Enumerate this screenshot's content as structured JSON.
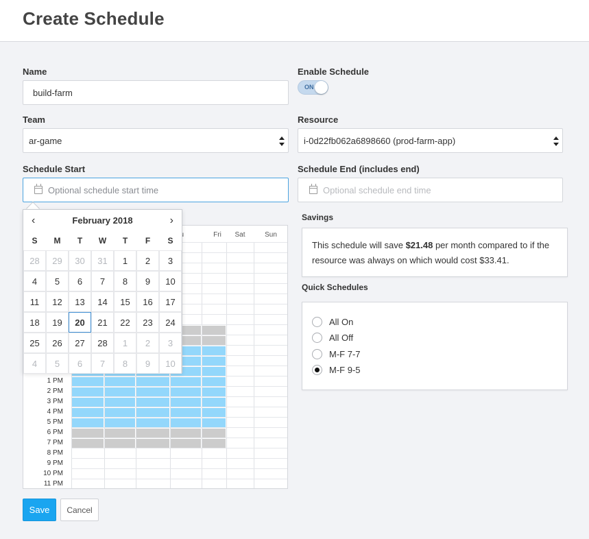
{
  "header": {
    "title": "Create Schedule"
  },
  "form": {
    "name_label": "Name",
    "name_value": "build-farm",
    "enable_label": "Enable Schedule",
    "toggle_text": "ON",
    "team_label": "Team",
    "team_value": "ar-game",
    "resource_label": "Resource",
    "resource_value": "i-0d22fb062a6898660 (prod-farm-app)",
    "start_label": "Schedule Start",
    "start_placeholder": "Optional schedule start time",
    "end_label": "Schedule End (includes end)",
    "end_placeholder": "Optional schedule end time"
  },
  "datepicker": {
    "month_title": "February 2018",
    "prev_glyph": "‹",
    "next_glyph": "›",
    "weekdays": [
      "S",
      "M",
      "T",
      "W",
      "T",
      "F",
      "S"
    ],
    "weeks": [
      [
        "28",
        "29",
        "30",
        "31",
        "1",
        "2",
        "3"
      ],
      [
        "4",
        "5",
        "6",
        "7",
        "8",
        "9",
        "10"
      ],
      [
        "11",
        "12",
        "13",
        "14",
        "15",
        "16",
        "17"
      ],
      [
        "18",
        "19",
        "20",
        "21",
        "22",
        "23",
        "24"
      ],
      [
        "25",
        "26",
        "27",
        "28",
        "1",
        "2",
        "3"
      ],
      [
        "4",
        "5",
        "6",
        "7",
        "8",
        "9",
        "10"
      ]
    ],
    "today": "20"
  },
  "schedule_grid": {
    "visible_day_headers": {
      "thu": "hu",
      "fri": "Fri",
      "sat": "Sat",
      "sun": "Sun"
    },
    "hour_labels": [
      "1 PM",
      "2 PM",
      "3 PM",
      "4 PM",
      "5 PM",
      "6 PM",
      "7 PM",
      "8 PM",
      "9 PM",
      "10 PM",
      "11 PM"
    ]
  },
  "savings": {
    "label": "Savings",
    "text_before": "This schedule will save ",
    "amount": "$21.48",
    "text_after": " per month compared to if the resource was always on which would cost $33.41."
  },
  "quick_schedules": {
    "label": "Quick Schedules",
    "options": [
      {
        "label": "All On",
        "checked": false
      },
      {
        "label": "All Off",
        "checked": false
      },
      {
        "label": "M-F 7-7",
        "checked": false
      },
      {
        "label": "M-F 9-5",
        "checked": true
      }
    ]
  },
  "actions": {
    "save_label": "Save",
    "cancel_label": "Cancel"
  },
  "colors": {
    "accent": "#1aa5f0",
    "active_hour": "#93d7fb",
    "inactive_hour": "#cccccc"
  }
}
